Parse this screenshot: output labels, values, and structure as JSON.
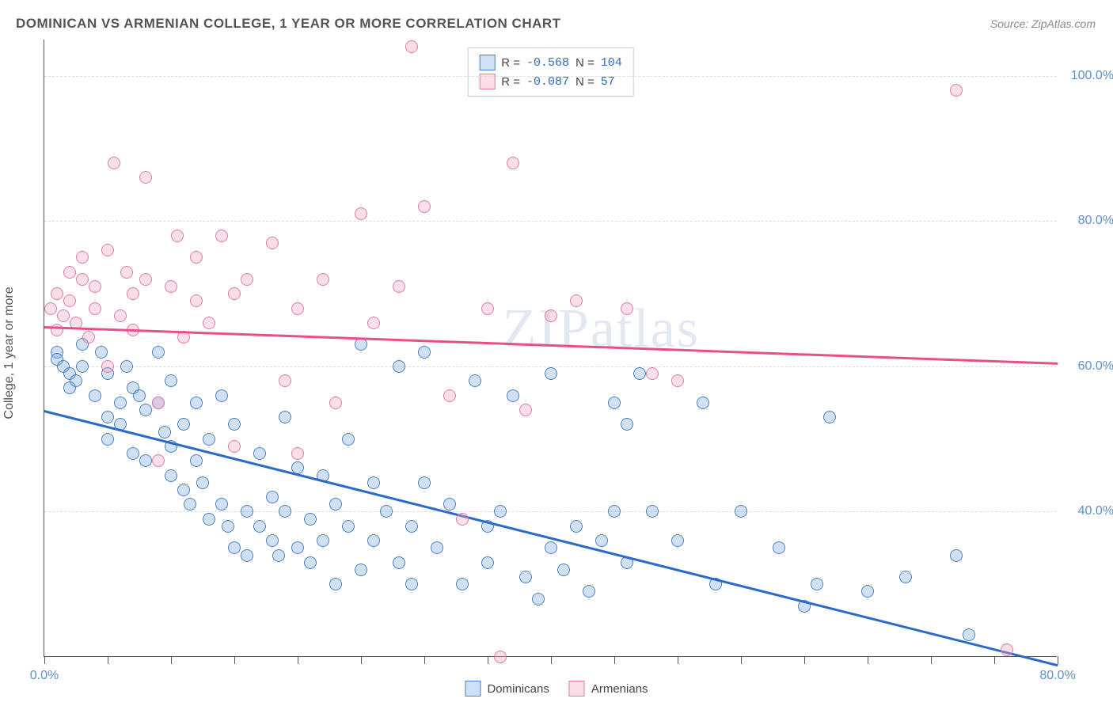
{
  "title": "DOMINICAN VS ARMENIAN COLLEGE, 1 YEAR OR MORE CORRELATION CHART",
  "source": "Source: ZipAtlas.com",
  "watermark": "ZIPatlas",
  "y_axis_label": "College, 1 year or more",
  "chart": {
    "type": "scatter",
    "xlim": [
      0,
      80
    ],
    "ylim": [
      20,
      105
    ],
    "xticks": [
      0,
      5,
      10,
      15,
      20,
      25,
      30,
      35,
      40,
      45,
      50,
      55,
      60,
      65,
      70,
      75,
      80
    ],
    "xtick_labels": {
      "0": "0.0%",
      "80": "80.0%"
    },
    "yticks": [
      40,
      60,
      80,
      100
    ],
    "ytick_labels": {
      "40": "40.0%",
      "60": "60.0%",
      "80": "80.0%",
      "100": "100.0%"
    },
    "grid_color": "#dddddd",
    "background_color": "#ffffff",
    "marker_size": 16,
    "series": [
      {
        "name": "Dominicans",
        "color_fill": "rgba(120,170,230,0.35)",
        "color_border": "#4a80c8",
        "trendline_color": "#2b6ac9",
        "trend_start": [
          0,
          54
        ],
        "trend_end": [
          80,
          19
        ],
        "stats": {
          "R": "-0.568",
          "N": "104"
        },
        "points": [
          [
            1,
            62
          ],
          [
            1,
            61
          ],
          [
            1.5,
            60
          ],
          [
            2,
            59
          ],
          [
            2,
            57
          ],
          [
            2.5,
            58
          ],
          [
            3,
            63
          ],
          [
            3,
            60
          ],
          [
            4,
            56
          ],
          [
            4.5,
            62
          ],
          [
            5,
            59
          ],
          [
            5,
            53
          ],
          [
            5,
            50
          ],
          [
            6,
            55
          ],
          [
            6,
            52
          ],
          [
            6.5,
            60
          ],
          [
            7,
            57
          ],
          [
            7,
            48
          ],
          [
            7.5,
            56
          ],
          [
            8,
            54
          ],
          [
            8,
            47
          ],
          [
            9,
            62
          ],
          [
            9,
            55
          ],
          [
            9.5,
            51
          ],
          [
            10,
            58
          ],
          [
            10,
            49
          ],
          [
            10,
            45
          ],
          [
            11,
            52
          ],
          [
            11,
            43
          ],
          [
            11.5,
            41
          ],
          [
            12,
            55
          ],
          [
            12,
            47
          ],
          [
            12.5,
            44
          ],
          [
            13,
            50
          ],
          [
            13,
            39
          ],
          [
            14,
            56
          ],
          [
            14,
            41
          ],
          [
            14.5,
            38
          ],
          [
            15,
            52
          ],
          [
            15,
            35
          ],
          [
            16,
            40
          ],
          [
            16,
            34
          ],
          [
            17,
            48
          ],
          [
            17,
            38
          ],
          [
            18,
            42
          ],
          [
            18,
            36
          ],
          [
            18.5,
            34
          ],
          [
            19,
            53
          ],
          [
            19,
            40
          ],
          [
            20,
            46
          ],
          [
            20,
            35
          ],
          [
            21,
            39
          ],
          [
            21,
            33
          ],
          [
            22,
            45
          ],
          [
            22,
            36
          ],
          [
            23,
            41
          ],
          [
            23,
            30
          ],
          [
            24,
            50
          ],
          [
            24,
            38
          ],
          [
            25,
            63
          ],
          [
            25,
            32
          ],
          [
            26,
            44
          ],
          [
            26,
            36
          ],
          [
            27,
            40
          ],
          [
            28,
            60
          ],
          [
            28,
            33
          ],
          [
            29,
            38
          ],
          [
            29,
            30
          ],
          [
            30,
            62
          ],
          [
            30,
            44
          ],
          [
            31,
            35
          ],
          [
            32,
            41
          ],
          [
            33,
            30
          ],
          [
            34,
            58
          ],
          [
            35,
            38
          ],
          [
            35,
            33
          ],
          [
            36,
            40
          ],
          [
            37,
            56
          ],
          [
            38,
            31
          ],
          [
            39,
            28
          ],
          [
            40,
            59
          ],
          [
            40,
            35
          ],
          [
            41,
            32
          ],
          [
            42,
            38
          ],
          [
            43,
            29
          ],
          [
            44,
            36
          ],
          [
            45,
            55
          ],
          [
            45,
            40
          ],
          [
            46,
            52
          ],
          [
            46,
            33
          ],
          [
            47,
            59
          ],
          [
            48,
            40
          ],
          [
            50,
            36
          ],
          [
            52,
            55
          ],
          [
            53,
            30
          ],
          [
            55,
            40
          ],
          [
            58,
            35
          ],
          [
            60,
            27
          ],
          [
            61,
            30
          ],
          [
            62,
            53
          ],
          [
            65,
            29
          ],
          [
            68,
            31
          ],
          [
            72,
            34
          ],
          [
            73,
            23
          ]
        ]
      },
      {
        "name": "Armenians",
        "color_fill": "rgba(240,160,190,0.35)",
        "color_border": "#e07ba5",
        "trendline_color": "#e84f8a",
        "trend_start": [
          0,
          65.5
        ],
        "trend_end": [
          80,
          60.5
        ],
        "stats": {
          "R": "-0.087",
          "N": "57"
        },
        "points": [
          [
            0.5,
            68
          ],
          [
            1,
            65
          ],
          [
            1,
            70
          ],
          [
            1.5,
            67
          ],
          [
            2,
            69
          ],
          [
            2,
            73
          ],
          [
            2.5,
            66
          ],
          [
            3,
            72
          ],
          [
            3,
            75
          ],
          [
            3.5,
            64
          ],
          [
            4,
            68
          ],
          [
            4,
            71
          ],
          [
            5,
            76
          ],
          [
            5,
            60
          ],
          [
            5.5,
            88
          ],
          [
            6,
            67
          ],
          [
            6.5,
            73
          ],
          [
            7,
            70
          ],
          [
            7,
            65
          ],
          [
            8,
            86
          ],
          [
            8,
            72
          ],
          [
            9,
            55
          ],
          [
            9,
            47
          ],
          [
            10,
            71
          ],
          [
            10.5,
            78
          ],
          [
            11,
            64
          ],
          [
            12,
            75
          ],
          [
            12,
            69
          ],
          [
            13,
            66
          ],
          [
            14,
            78
          ],
          [
            15,
            70
          ],
          [
            15,
            49
          ],
          [
            16,
            72
          ],
          [
            18,
            77
          ],
          [
            19,
            58
          ],
          [
            20,
            68
          ],
          [
            20,
            48
          ],
          [
            22,
            72
          ],
          [
            23,
            55
          ],
          [
            25,
            81
          ],
          [
            26,
            66
          ],
          [
            28,
            71
          ],
          [
            29,
            104
          ],
          [
            30,
            82
          ],
          [
            32,
            56
          ],
          [
            33,
            39
          ],
          [
            35,
            68
          ],
          [
            36,
            20
          ],
          [
            37,
            88
          ],
          [
            38,
            54
          ],
          [
            40,
            67
          ],
          [
            42,
            69
          ],
          [
            46,
            68
          ],
          [
            48,
            59
          ],
          [
            50,
            58
          ],
          [
            72,
            98
          ],
          [
            76,
            21
          ]
        ]
      }
    ]
  },
  "legend_top": {
    "rows": [
      {
        "swatch": "blue",
        "r_label": "R =",
        "r_val": "-0.568",
        "n_label": "N =",
        "n_val": "104"
      },
      {
        "swatch": "pink",
        "r_label": "R =",
        "r_val": "-0.087",
        "n_label": "N =",
        "n_val": " 57"
      }
    ]
  },
  "legend_bottom": {
    "items": [
      {
        "swatch": "blue",
        "label": "Dominicans"
      },
      {
        "swatch": "pink",
        "label": "Armenians"
      }
    ]
  }
}
